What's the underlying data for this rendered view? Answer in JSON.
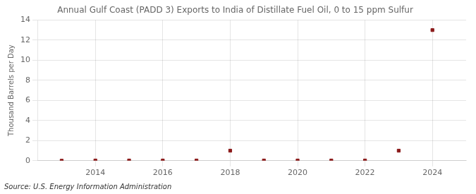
{
  "chart_data": {
    "type": "scatter",
    "title": "Annual Gulf Coast (PADD 3) Exports to India of Distillate Fuel Oil, 0 to 15 ppm Sulfur",
    "ylabel": "Thousand Barrels per Day",
    "annotations": [
      "Source: U.S. Energy Information Administration"
    ],
    "x": [
      2013,
      2014,
      2015,
      2016,
      2017,
      2018,
      2019,
      2020,
      2021,
      2022,
      2023,
      2024
    ],
    "values": [
      0.0,
      0.02,
      0.02,
      0.02,
      0.02,
      1.0,
      0.02,
      0.02,
      0.02,
      0.02,
      1.0,
      13.0
    ],
    "color": "#8b1a1a",
    "marker": "square",
    "xlim": [
      2012.3,
      2025.0
    ],
    "xticks": [
      2014,
      2016,
      2018,
      2020,
      2022,
      2024
    ],
    "ylim": [
      0,
      14
    ],
    "yticks": [
      0,
      2,
      4,
      6,
      8,
      10,
      12,
      14
    ],
    "grid": true
  }
}
